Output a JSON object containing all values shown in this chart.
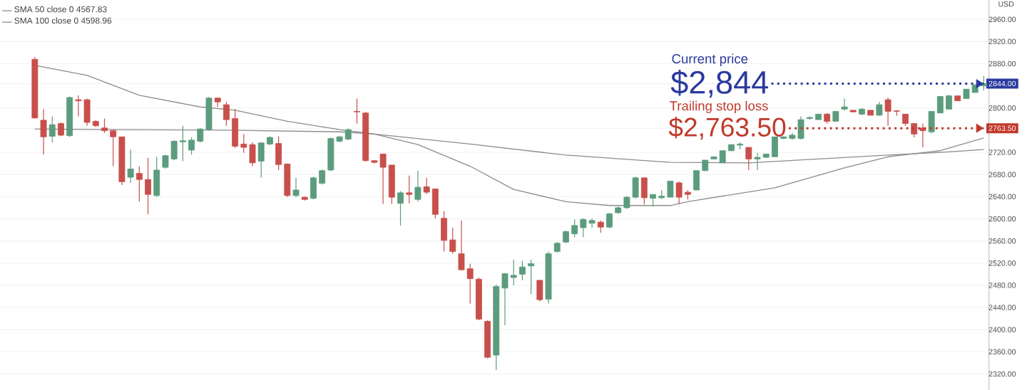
{
  "chart_data": {
    "type": "candlestick",
    "ylabel": "USD",
    "categories": [
      null,
      null,
      null,
      null,
      null,
      null,
      null,
      null,
      null,
      null,
      null,
      null,
      null,
      null,
      null,
      null,
      null,
      null,
      null,
      null,
      null,
      null,
      null,
      null,
      null,
      null,
      null,
      null,
      null,
      null,
      null,
      null,
      null,
      null,
      null,
      null,
      null,
      null,
      null,
      null,
      null,
      null,
      null,
      null,
      null,
      null,
      null,
      null,
      null,
      null,
      null,
      null,
      null,
      null,
      null,
      null,
      null,
      null,
      null,
      null,
      null,
      null,
      null,
      null,
      null,
      null,
      null,
      null,
      null,
      null,
      null,
      null,
      null,
      null,
      null,
      null,
      null,
      null,
      null,
      null,
      null,
      null,
      null,
      null,
      null,
      null,
      null,
      null,
      null,
      null,
      null,
      null,
      null,
      null,
      null,
      null,
      null,
      null,
      null,
      null,
      null,
      null,
      null,
      null,
      null,
      null,
      null,
      null,
      null,
      null
    ],
    "ohlc": [
      [
        2888,
        2892,
        2781,
        2782
      ],
      [
        2778,
        2798,
        2716,
        2748
      ],
      [
        2749,
        2785,
        2738,
        2770
      ],
      [
        2772,
        2774,
        2749,
        2751
      ],
      [
        2750,
        2821,
        2748,
        2819
      ],
      [
        2815,
        2823,
        2785,
        2813
      ],
      [
        2815,
        2817,
        2768,
        2774
      ],
      [
        2776,
        2778,
        2766,
        2768
      ],
      [
        2764,
        2781,
        2755,
        2759
      ],
      [
        2759,
        2761,
        2695,
        2748
      ],
      [
        2748,
        2748,
        2661,
        2667
      ],
      [
        2675,
        2725,
        2665,
        2690
      ],
      [
        2682,
        2695,
        2631,
        2671
      ],
      [
        2671,
        2710,
        2608,
        2644
      ],
      [
        2642,
        2712,
        2639,
        2688
      ],
      [
        2693,
        2716,
        2691,
        2714
      ],
      [
        2708,
        2742,
        2706,
        2740
      ],
      [
        2739,
        2768,
        2704,
        2741
      ],
      [
        2724,
        2747,
        2716,
        2742
      ],
      [
        2740,
        2764,
        2738,
        2762
      ],
      [
        2761,
        2820,
        2759,
        2818
      ],
      [
        2818,
        2819,
        2802,
        2811
      ],
      [
        2806,
        2811,
        2768,
        2779
      ],
      [
        2781,
        2798,
        2728,
        2731
      ],
      [
        2735,
        2753,
        2719,
        2729
      ],
      [
        2734,
        2738,
        2695,
        2701
      ],
      [
        2704,
        2738,
        2674,
        2737
      ],
      [
        2735,
        2749,
        2733,
        2747
      ],
      [
        2736,
        2749,
        2688,
        2698
      ],
      [
        2699,
        2700,
        2639,
        2642
      ],
      [
        2642,
        2674,
        2639,
        2652
      ],
      [
        2639,
        2640,
        2633,
        2635
      ],
      [
        2637,
        2676,
        2635,
        2674
      ],
      [
        2664,
        2689,
        2662,
        2687
      ],
      [
        2688,
        2747,
        2686,
        2745
      ],
      [
        2740,
        2750,
        2738,
        2748
      ],
      [
        2744,
        2763,
        2742,
        2761
      ],
      [
        2794,
        2817,
        2772,
        2793
      ],
      [
        2791,
        2793,
        2703,
        2705
      ],
      [
        2705,
        2706,
        2700,
        2702
      ],
      [
        2717,
        2717,
        2627,
        2693
      ],
      [
        2697,
        2697,
        2627,
        2639
      ],
      [
        2628,
        2650,
        2588,
        2647
      ],
      [
        2647,
        2678,
        2628,
        2644
      ],
      [
        2635,
        2687,
        2631,
        2657
      ],
      [
        2658,
        2674,
        2645,
        2648
      ],
      [
        2654,
        2654,
        2601,
        2608
      ],
      [
        2601,
        2614,
        2541,
        2561
      ],
      [
        2562,
        2584,
        2537,
        2541
      ],
      [
        2537,
        2597,
        2507,
        2508
      ],
      [
        2510,
        2519,
        2447,
        2492
      ],
      [
        2491,
        2494,
        2417,
        2419
      ],
      [
        2415,
        2417,
        2348,
        2350
      ],
      [
        2354,
        2481,
        2327,
        2478
      ],
      [
        2475,
        2502,
        2408,
        2501
      ],
      [
        2494,
        2526,
        2480,
        2498
      ],
      [
        2500,
        2524,
        2489,
        2513
      ],
      [
        2515,
        2526,
        2464,
        2519
      ],
      [
        2489,
        2489,
        2451,
        2454
      ],
      [
        2455,
        2541,
        2447,
        2537
      ],
      [
        2541,
        2558,
        2539,
        2556
      ],
      [
        2558,
        2579,
        2556,
        2577
      ],
      [
        2573,
        2599,
        2567,
        2588
      ],
      [
        2584,
        2601,
        2567,
        2599
      ],
      [
        2592,
        2601,
        2584,
        2597
      ],
      [
        2594,
        2597,
        2575,
        2585
      ],
      [
        2585,
        2611,
        2583,
        2609
      ],
      [
        2611,
        2622,
        2609,
        2620
      ],
      [
        2620,
        2641,
        2618,
        2639
      ],
      [
        2639,
        2676,
        2637,
        2674
      ],
      [
        2674,
        2674,
        2626,
        2638
      ],
      [
        2637,
        2644,
        2622,
        2644
      ],
      [
        2638,
        2652,
        2636,
        2641
      ],
      [
        2639,
        2668,
        2639,
        2668
      ],
      [
        2665,
        2667,
        2627,
        2639
      ],
      [
        2648,
        2652,
        2635,
        2644
      ],
      [
        2652,
        2687,
        2652,
        2687
      ],
      [
        2687,
        2706,
        2686,
        2706
      ],
      [
        2708,
        2712,
        2708,
        2712
      ],
      [
        2701,
        2723,
        2701,
        2723
      ],
      [
        2723,
        2734,
        2722,
        2734
      ],
      [
        2733,
        2738,
        2725,
        2735
      ],
      [
        2729,
        2729,
        2688,
        2708
      ],
      [
        2708,
        2719,
        2688,
        2711
      ],
      [
        2711,
        2717,
        2710,
        2717
      ],
      [
        2712,
        2748,
        2712,
        2748
      ],
      [
        2745,
        2749,
        2744,
        2748
      ],
      [
        2745,
        2755,
        2743,
        2751
      ],
      [
        2745,
        2785,
        2743,
        2779
      ],
      [
        2781,
        2785,
        2779,
        2783
      ],
      [
        2779,
        2789,
        2779,
        2789
      ],
      [
        2789,
        2791,
        2772,
        2776
      ],
      [
        2776,
        2794,
        2776,
        2794
      ],
      [
        2798,
        2817,
        2796,
        2802
      ],
      [
        2796,
        2796,
        2793,
        2793
      ],
      [
        2789,
        2800,
        2787,
        2798
      ],
      [
        2796,
        2796,
        2787,
        2787
      ],
      [
        2787,
        2811,
        2786,
        2806
      ],
      [
        2815,
        2819,
        2768,
        2794
      ],
      [
        2795,
        2796,
        2786,
        2794
      ],
      [
        2789,
        2789,
        2768,
        2772
      ],
      [
        2772,
        2772,
        2747,
        2753
      ],
      [
        2764,
        2772,
        2729,
        2759
      ],
      [
        2757,
        2794,
        2754,
        2794
      ],
      [
        2791,
        2821,
        2791,
        2821
      ],
      [
        2798,
        2824,
        2798,
        2822
      ],
      [
        2822,
        2822,
        2813,
        2813
      ],
      [
        2817,
        2834,
        2817,
        2834
      ],
      [
        2828,
        2842,
        2828,
        2842
      ],
      [
        2840,
        2858,
        2832,
        2844
      ]
    ],
    "colors": [
      "#c84f4b",
      "#c84f4b",
      "#5b9c7d",
      "#c84f4b",
      "#5b9c7d",
      "#c84f4b",
      "#c84f4b",
      "#c84f4b",
      "#c84f4b",
      "#c84f4b",
      "#c84f4b",
      "#5b9c7d",
      "#c84f4b",
      "#c84f4b",
      "#5b9c7d",
      "#5b9c7d",
      "#5b9c7d",
      "#5b9c7d",
      "#5b9c7d",
      "#5b9c7d",
      "#5b9c7d",
      "#c84f4b",
      "#c84f4b",
      "#c84f4b",
      "#c84f4b",
      "#c84f4b",
      "#5b9c7d",
      "#5b9c7d",
      "#c84f4b",
      "#c84f4b",
      "#5b9c7d",
      "#c84f4b",
      "#5b9c7d",
      "#5b9c7d",
      "#5b9c7d",
      "#5b9c7d",
      "#5b9c7d",
      "#c84f4b",
      "#c84f4b",
      "#c84f4b",
      "#c84f4b",
      "#c84f4b",
      "#5b9c7d",
      "#c84f4b",
      "#5b9c7d",
      "#c84f4b",
      "#c84f4b",
      "#c84f4b",
      "#c84f4b",
      "#c84f4b",
      "#c84f4b",
      "#c84f4b",
      "#c84f4b",
      "#5b9c7d",
      "#5b9c7d",
      "#5b9c7d",
      "#5b9c7d",
      "#5b9c7d",
      "#c84f4b",
      "#5b9c7d",
      "#5b9c7d",
      "#5b9c7d",
      "#5b9c7d",
      "#5b9c7d",
      "#5b9c7d",
      "#c84f4b",
      "#5b9c7d",
      "#5b9c7d",
      "#5b9c7d",
      "#5b9c7d",
      "#c84f4b",
      "#5b9c7d",
      "#5b9c7d",
      "#5b9c7d",
      "#c84f4b",
      "#c84f4b",
      "#5b9c7d",
      "#5b9c7d",
      "#5b9c7d",
      "#5b9c7d",
      "#5b9c7d",
      "#5b9c7d",
      "#c84f4b",
      "#5b9c7d",
      "#5b9c7d",
      "#5b9c7d",
      "#5b9c7d",
      "#5b9c7d",
      "#5b9c7d",
      "#5b9c7d",
      "#5b9c7d",
      "#c84f4b",
      "#5b9c7d",
      "#5b9c7d",
      "#c84f4b",
      "#5b9c7d",
      "#c84f4b",
      "#5b9c7d",
      "#c84f4b",
      "#c84f4b",
      "#c84f4b",
      "#c84f4b",
      "#c84f4b",
      "#5b9c7d",
      "#5b9c7d",
      "#5b9c7d",
      "#c84f4b",
      "#5b9c7d",
      "#5b9c7d",
      "#5b9c7d"
    ],
    "series": [
      {
        "type": "line",
        "name": "SMA 50 close 0 4567.83",
        "color": "#8c8c8c",
        "values": [
          2877,
          null,
          null,
          null,
          null,
          null,
          2859,
          null,
          null,
          null,
          null,
          null,
          2823,
          null,
          null,
          null,
          null,
          null,
          null,
          2802,
          null,
          null,
          null,
          2796,
          null,
          null,
          null,
          null,
          null,
          2776,
          null,
          null,
          null,
          null,
          null,
          2761,
          null,
          null,
          null,
          2753,
          null,
          null,
          null,
          null,
          2734,
          null,
          null,
          null,
          null,
          null,
          2695,
          null,
          null,
          null,
          null,
          2653,
          null,
          null,
          null,
          null,
          null,
          2631,
          null,
          null,
          null,
          null,
          2624,
          null,
          null,
          null,
          null,
          null,
          null,
          2624,
          null,
          2631,
          null,
          null,
          null,
          null,
          null,
          null,
          null,
          null,
          null,
          2656,
          null,
          null,
          null,
          null,
          null,
          null,
          null,
          2692,
          null,
          null,
          null,
          null,
          2712,
          null,
          null,
          null,
          null,
          null,
          2723,
          null,
          null,
          null,
          null,
          2746
        ]
      },
      {
        "type": "line",
        "name": "SMA 100 close 0 4598.96",
        "color": "#8c8c8c",
        "values": [
          2762,
          null,
          null,
          null,
          null,
          null,
          null,
          null,
          null,
          2761,
          null,
          null,
          null,
          null,
          null,
          null,
          null,
          null,
          null,
          null,
          null,
          null,
          2760,
          null,
          null,
          null,
          null,
          null,
          null,
          null,
          null,
          null,
          null,
          null,
          null,
          2757,
          null,
          null,
          null,
          2753,
          null,
          null,
          null,
          null,
          null,
          null,
          null,
          null,
          null,
          null,
          2735,
          null,
          null,
          null,
          null,
          null,
          null,
          null,
          null,
          null,
          null,
          2715,
          null,
          null,
          null,
          null,
          null,
          null,
          null,
          null,
          null,
          null,
          null,
          2702,
          null,
          null,
          null,
          null,
          null,
          null,
          null,
          null,
          2701,
          null,
          null,
          null,
          null,
          null,
          null,
          null,
          null,
          null,
          null,
          null,
          null,
          null,
          null,
          null,
          2715,
          null,
          null,
          null,
          null,
          null,
          2720,
          null,
          null,
          null,
          null,
          2725
        ]
      }
    ],
    "ylim": [
      2291,
      2995
    ],
    "yticks": [
      {
        "value": 2960,
        "label": "2960.00"
      },
      {
        "value": 2920,
        "label": "2920.00"
      },
      {
        "value": 2880,
        "label": "2880.00"
      },
      {
        "value": 2844,
        "label": "2844.00"
      },
      {
        "value": 2800,
        "label": "2800.00"
      },
      {
        "value": 2763.5,
        "label": "2763.50"
      },
      {
        "value": 2720,
        "label": "2720.00"
      },
      {
        "value": 2680,
        "label": "2680.00"
      },
      {
        "value": 2640,
        "label": "2640.00"
      },
      {
        "value": 2600,
        "label": "2600.00"
      },
      {
        "value": 2560,
        "label": "2560.00"
      },
      {
        "value": 2520,
        "label": "2520.00"
      },
      {
        "value": 2480,
        "label": "2480.00"
      },
      {
        "value": 2440,
        "label": "2440.00"
      },
      {
        "value": 2400,
        "label": "2400.00"
      },
      {
        "value": 2360,
        "label": "2360.00"
      },
      {
        "value": 2320,
        "label": "2320.00"
      }
    ],
    "ref_lines": [
      {
        "axis": "y",
        "value": 2844,
        "label": "$2,844",
        "color": "#2b3a9e",
        "line_style": "dotted"
      },
      {
        "axis": "y",
        "value": 2763.5,
        "label": "$2,763.50",
        "color": "#c0392b",
        "line_style": "dotted"
      }
    ],
    "annotations": [
      "Current price",
      "Trailing stop loss"
    ],
    "grid": "y",
    "legend": "top left",
    "tick_labels": "y"
  }
}
